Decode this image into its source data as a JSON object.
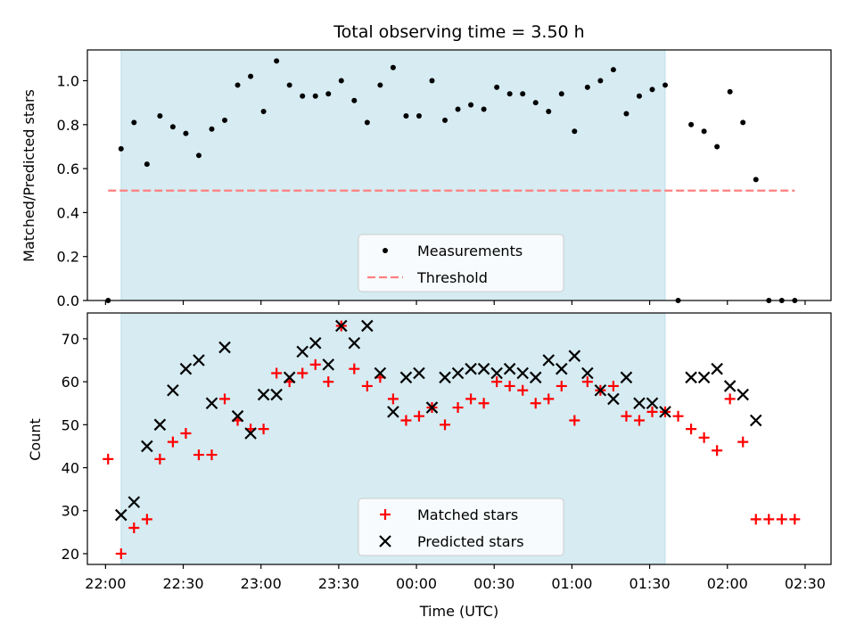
{
  "chart_data": {
    "title": "Total observing time = 3.50 h",
    "xlabel": "Time (UTC)",
    "x_unit": "time (UTC), data values given as HH:MM",
    "xlim": [
      "21:53",
      "02:40"
    ],
    "xticks": [
      "22:00",
      "22:30",
      "23:00",
      "23:30",
      "00:00",
      "00:30",
      "01:00",
      "01:30",
      "02:00",
      "02:30"
    ],
    "panels": [
      {
        "type": "scatter",
        "ylabel": "Matched/Predicted stars",
        "ylim": [
          0,
          1.14
        ],
        "yticks": [
          "0.0",
          "0.2",
          "0.4",
          "0.6",
          "0.8",
          "1.0"
        ],
        "shaded_span": {
          "start": "22:06",
          "end": "01:36",
          "color": "#add8e6"
        },
        "legend_position": "lower center",
        "series": [
          {
            "name": "Measurements",
            "marker": "dot",
            "color": "#000000",
            "points": [
              [
                "22:01",
                0.0
              ],
              [
                "22:06",
                0.69
              ],
              [
                "22:11",
                0.81
              ],
              [
                "22:16",
                0.62
              ],
              [
                "22:21",
                0.84
              ],
              [
                "22:26",
                0.79
              ],
              [
                "22:31",
                0.76
              ],
              [
                "22:36",
                0.66
              ],
              [
                "22:41",
                0.78
              ],
              [
                "22:46",
                0.82
              ],
              [
                "22:51",
                0.98
              ],
              [
                "22:56",
                1.02
              ],
              [
                "23:01",
                0.86
              ],
              [
                "23:06",
                1.09
              ],
              [
                "23:11",
                0.98
              ],
              [
                "23:16",
                0.93
              ],
              [
                "23:21",
                0.93
              ],
              [
                "23:26",
                0.94
              ],
              [
                "23:31",
                1.0
              ],
              [
                "23:36",
                0.91
              ],
              [
                "23:41",
                0.81
              ],
              [
                "23:46",
                0.98
              ],
              [
                "23:51",
                1.06
              ],
              [
                "23:56",
                0.84
              ],
              [
                "00:01",
                0.84
              ],
              [
                "00:06",
                1.0
              ],
              [
                "00:11",
                0.82
              ],
              [
                "00:16",
                0.87
              ],
              [
                "00:21",
                0.89
              ],
              [
                "00:26",
                0.87
              ],
              [
                "00:31",
                0.97
              ],
              [
                "00:36",
                0.94
              ],
              [
                "00:41",
                0.94
              ],
              [
                "00:46",
                0.9
              ],
              [
                "00:51",
                0.86
              ],
              [
                "00:56",
                0.94
              ],
              [
                "01:01",
                0.77
              ],
              [
                "01:06",
                0.97
              ],
              [
                "01:11",
                1.0
              ],
              [
                "01:16",
                1.05
              ],
              [
                "01:21",
                0.85
              ],
              [
                "01:26",
                0.93
              ],
              [
                "01:31",
                0.96
              ],
              [
                "01:36",
                0.98
              ],
              [
                "01:41",
                0.0
              ],
              [
                "01:46",
                0.8
              ],
              [
                "01:51",
                0.77
              ],
              [
                "01:56",
                0.7
              ],
              [
                "02:01",
                0.95
              ],
              [
                "02:06",
                0.81
              ],
              [
                "02:11",
                0.55
              ],
              [
                "02:16",
                0.0
              ],
              [
                "02:21",
                0.0
              ],
              [
                "02:26",
                0.0
              ]
            ]
          },
          {
            "name": "Threshold",
            "marker": "dashed-line",
            "color": "#ff7f7f",
            "points": [
              [
                "22:01",
                0.5
              ],
              [
                "02:26",
                0.5
              ]
            ]
          }
        ]
      },
      {
        "type": "scatter",
        "ylabel": "Count",
        "ylim": [
          17.5,
          76
        ],
        "yticks": [
          "20",
          "30",
          "40",
          "50",
          "60",
          "70"
        ],
        "shaded_span": {
          "start": "22:06",
          "end": "01:36",
          "color": "#add8e6"
        },
        "legend_position": "lower center",
        "series": [
          {
            "name": "Matched stars",
            "marker": "plus",
            "color": "#ff0000",
            "points": [
              [
                "22:01",
                42
              ],
              [
                "22:06",
                20
              ],
              [
                "22:11",
                26
              ],
              [
                "22:16",
                28
              ],
              [
                "22:21",
                42
              ],
              [
                "22:26",
                46
              ],
              [
                "22:31",
                48
              ],
              [
                "22:36",
                43
              ],
              [
                "22:41",
                43
              ],
              [
                "22:46",
                56
              ],
              [
                "22:51",
                51
              ],
              [
                "22:56",
                49
              ],
              [
                "23:01",
                49
              ],
              [
                "23:06",
                62
              ],
              [
                "23:11",
                60
              ],
              [
                "23:16",
                62
              ],
              [
                "23:21",
                64
              ],
              [
                "23:26",
                60
              ],
              [
                "23:31",
                73
              ],
              [
                "23:36",
                63
              ],
              [
                "23:41",
                59
              ],
              [
                "23:46",
                61
              ],
              [
                "23:51",
                56
              ],
              [
                "23:56",
                51
              ],
              [
                "00:01",
                52
              ],
              [
                "00:06",
                54
              ],
              [
                "00:11",
                50
              ],
              [
                "00:16",
                54
              ],
              [
                "00:21",
                56
              ],
              [
                "00:26",
                55
              ],
              [
                "00:31",
                60
              ],
              [
                "00:36",
                59
              ],
              [
                "00:41",
                58
              ],
              [
                "00:46",
                55
              ],
              [
                "00:51",
                56
              ],
              [
                "00:56",
                59
              ],
              [
                "01:01",
                51
              ],
              [
                "01:06",
                60
              ],
              [
                "01:11",
                58
              ],
              [
                "01:16",
                59
              ],
              [
                "01:21",
                52
              ],
              [
                "01:26",
                51
              ],
              [
                "01:31",
                53
              ],
              [
                "01:36",
                53
              ],
              [
                "01:41",
                52
              ],
              [
                "01:46",
                49
              ],
              [
                "01:51",
                47
              ],
              [
                "01:56",
                44
              ],
              [
                "02:01",
                56
              ],
              [
                "02:06",
                46
              ],
              [
                "02:11",
                28
              ],
              [
                "02:16",
                28
              ],
              [
                "02:21",
                28
              ],
              [
                "02:26",
                28
              ]
            ]
          },
          {
            "name": "Predicted stars",
            "marker": "x",
            "color": "#000000",
            "points": [
              [
                "22:06",
                29
              ],
              [
                "22:11",
                32
              ],
              [
                "22:16",
                45
              ],
              [
                "22:21",
                50
              ],
              [
                "22:26",
                58
              ],
              [
                "22:31",
                63
              ],
              [
                "22:36",
                65
              ],
              [
                "22:41",
                55
              ],
              [
                "22:46",
                68
              ],
              [
                "22:51",
                52
              ],
              [
                "22:56",
                48
              ],
              [
                "23:01",
                57
              ],
              [
                "23:06",
                57
              ],
              [
                "23:11",
                61
              ],
              [
                "23:16",
                67
              ],
              [
                "23:21",
                69
              ],
              [
                "23:26",
                64
              ],
              [
                "23:31",
                73
              ],
              [
                "23:36",
                69
              ],
              [
                "23:41",
                73
              ],
              [
                "23:46",
                62
              ],
              [
                "23:51",
                53
              ],
              [
                "23:56",
                61
              ],
              [
                "00:01",
                62
              ],
              [
                "00:06",
                54
              ],
              [
                "00:11",
                61
              ],
              [
                "00:16",
                62
              ],
              [
                "00:21",
                63
              ],
              [
                "00:26",
                63
              ],
              [
                "00:31",
                62
              ],
              [
                "00:36",
                63
              ],
              [
                "00:41",
                62
              ],
              [
                "00:46",
                61
              ],
              [
                "00:51",
                65
              ],
              [
                "00:56",
                63
              ],
              [
                "01:01",
                66
              ],
              [
                "01:06",
                62
              ],
              [
                "01:11",
                58
              ],
              [
                "01:16",
                56
              ],
              [
                "01:21",
                61
              ],
              [
                "01:26",
                55
              ],
              [
                "01:31",
                55
              ],
              [
                "01:36",
                53
              ],
              [
                "01:46",
                61
              ],
              [
                "01:51",
                61
              ],
              [
                "01:56",
                63
              ],
              [
                "02:01",
                59
              ],
              [
                "02:06",
                57
              ],
              [
                "02:11",
                51
              ]
            ]
          }
        ]
      }
    ]
  }
}
